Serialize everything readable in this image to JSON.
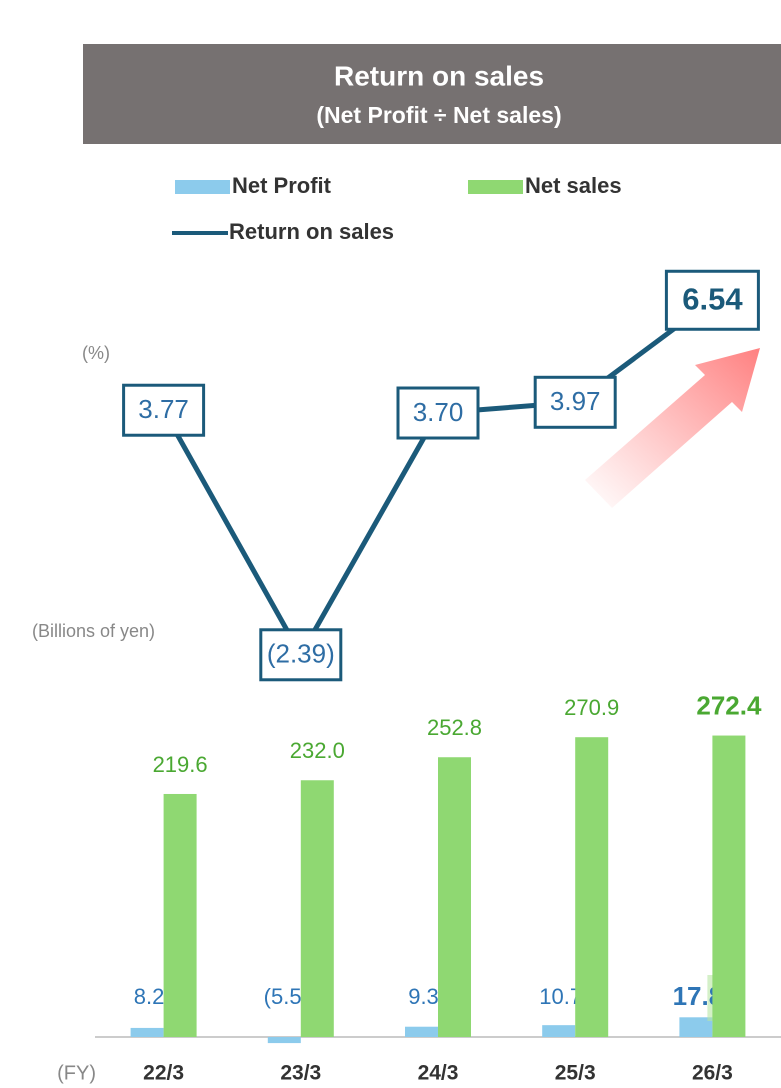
{
  "chart_data": {
    "type": "combo",
    "title": "Return on sales",
    "subtitle": "(Net Profit ÷ Net sales)",
    "y2_label": "(%)",
    "y_label": "(Billions of yen)",
    "x_label": "(FY)",
    "categories": [
      "22/3",
      "23/3",
      "24/3",
      "25/3",
      "26/3"
    ],
    "ylim": [
      0,
      300
    ],
    "y2lim": [
      -3,
      7
    ],
    "series": [
      {
        "name": "Net Profit",
        "type": "bar",
        "color": "#8ccbec",
        "label_color": "#2e75b6",
        "values": [
          8.2,
          -5.5,
          9.3,
          10.7,
          17.8
        ],
        "value_labels": [
          "8.2",
          "(5.5)",
          "9.3",
          "10.7",
          "17.8"
        ]
      },
      {
        "name": "Net sales",
        "type": "bar",
        "color": "#8fd872",
        "label_color": "#4aa832",
        "values": [
          219.6,
          232.0,
          252.8,
          270.9,
          272.4
        ],
        "value_labels": [
          "219.6",
          "232.0",
          "252.8",
          "270.9",
          "272.4"
        ]
      },
      {
        "name": "Return on sales",
        "type": "line",
        "axis": "y2",
        "color": "#1b5a7a",
        "label_color": "#2e6da4",
        "values": [
          3.77,
          -2.39,
          3.7,
          3.97,
          6.54
        ],
        "value_labels": [
          "3.77",
          "(2.39)",
          "3.70",
          "3.97",
          "6.54"
        ]
      }
    ]
  }
}
